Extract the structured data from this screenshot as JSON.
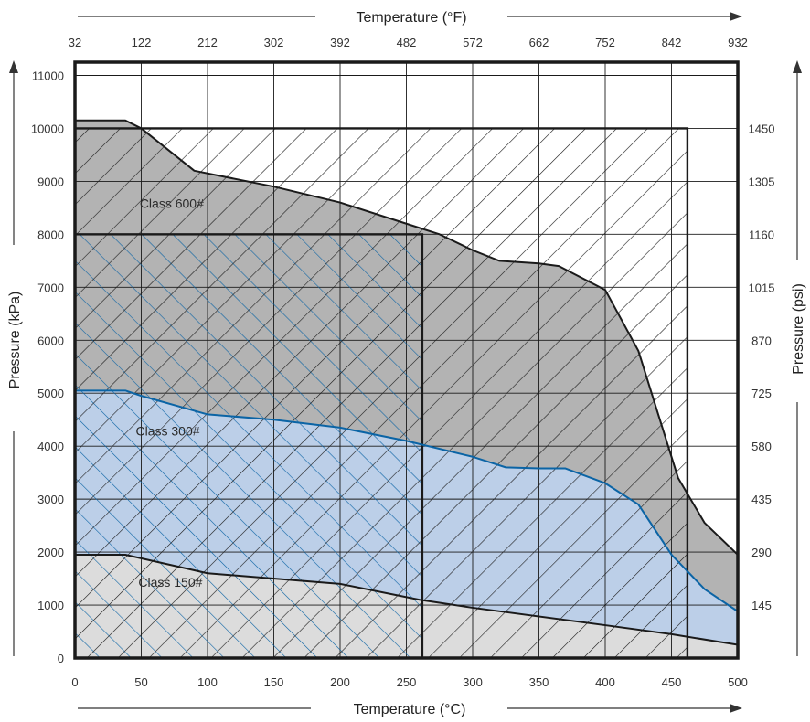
{
  "chart_data": {
    "type": "area",
    "xlabel": "Temperature (°C)",
    "x2label": "Temperature (°F)",
    "ylabel": "Pressure (kPa)",
    "y2label": "Pressure (psi)",
    "xlim": [
      0,
      500
    ],
    "ylim": [
      0,
      11000
    ],
    "x_ticks": [
      0,
      50,
      100,
      150,
      200,
      250,
      300,
      350,
      400,
      450,
      500
    ],
    "x2_tick_labels": [
      "32",
      "122",
      "212",
      "302",
      "392",
      "482",
      "572",
      "662",
      "752",
      "842",
      "932"
    ],
    "y_ticks": [
      0,
      1000,
      2000,
      3000,
      4000,
      5000,
      6000,
      7000,
      8000,
      9000,
      10000,
      11000
    ],
    "y2_ticks": [
      {
        "kpa": 1000,
        "label": "145"
      },
      {
        "kpa": 2000,
        "label": "290"
      },
      {
        "kpa": 3000,
        "label": "435"
      },
      {
        "kpa": 4000,
        "label": "580"
      },
      {
        "kpa": 5000,
        "label": "725"
      },
      {
        "kpa": 6000,
        "label": "870"
      },
      {
        "kpa": 7000,
        "label": "1015"
      },
      {
        "kpa": 8000,
        "label": "1160"
      },
      {
        "kpa": 9000,
        "label": "1305"
      },
      {
        "kpa": 10000,
        "label": "1450"
      }
    ],
    "grid": true,
    "series": [
      {
        "name": "Class 150#",
        "fill": "#dcdcdc",
        "line": "#1a1a1a",
        "points": [
          [
            0,
            1950
          ],
          [
            38,
            1950
          ],
          [
            100,
            1600
          ],
          [
            200,
            1400
          ],
          [
            260,
            1100
          ],
          [
            300,
            950
          ],
          [
            400,
            620
          ],
          [
            450,
            450
          ],
          [
            500,
            250
          ]
        ]
      },
      {
        "name": "Class 300#",
        "fill": "#bccfe8",
        "line": "#0b64a5",
        "points": [
          [
            0,
            5050
          ],
          [
            38,
            5050
          ],
          [
            50,
            4950
          ],
          [
            100,
            4600
          ],
          [
            150,
            4500
          ],
          [
            200,
            4350
          ],
          [
            250,
            4100
          ],
          [
            300,
            3800
          ],
          [
            325,
            3600
          ],
          [
            350,
            3580
          ],
          [
            370,
            3580
          ],
          [
            400,
            3300
          ],
          [
            425,
            2900
          ],
          [
            450,
            1950
          ],
          [
            475,
            1300
          ],
          [
            500,
            880
          ]
        ]
      },
      {
        "name": "Class 600#",
        "fill": "#b3b3b3",
        "line": "#1a1a1a",
        "points": [
          [
            0,
            10150
          ],
          [
            38,
            10150
          ],
          [
            50,
            10000
          ],
          [
            90,
            9200
          ],
          [
            150,
            8900
          ],
          [
            200,
            8600
          ],
          [
            250,
            8200
          ],
          [
            275,
            8000
          ],
          [
            300,
            7700
          ],
          [
            320,
            7500
          ],
          [
            350,
            7450
          ],
          [
            365,
            7400
          ],
          [
            400,
            6950
          ],
          [
            425,
            5800
          ],
          [
            440,
            4600
          ],
          [
            455,
            3400
          ],
          [
            475,
            2550
          ],
          [
            500,
            1950
          ]
        ]
      }
    ],
    "hatch_regions": [
      {
        "x_range": [
          0,
          262
        ],
        "y_range": [
          0,
          8000
        ],
        "direction": "up",
        "color": "#0b64a5"
      },
      {
        "x_range": [
          0,
          462
        ],
        "y_range": [
          0,
          10000
        ],
        "direction": "down",
        "color": "#1a1a1a"
      }
    ],
    "annotations": [
      {
        "text": "Class 600#",
        "x": 73,
        "y": 8500
      },
      {
        "text": "Class 300#",
        "x": 70,
        "y": 4200
      },
      {
        "text": "Class 150#",
        "x": 72,
        "y": 1350
      }
    ]
  }
}
